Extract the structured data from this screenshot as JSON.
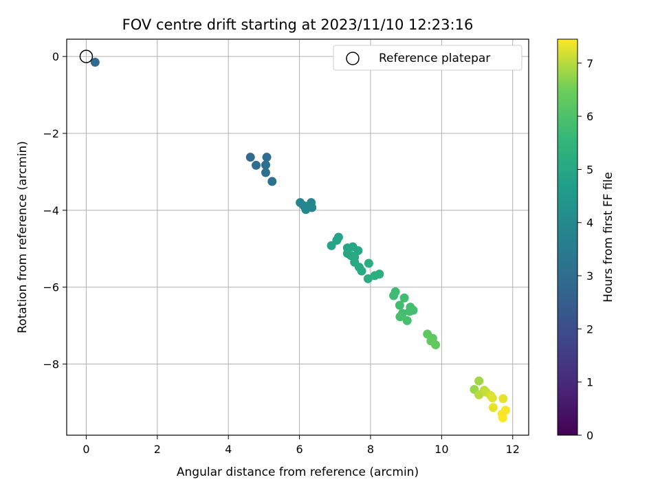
{
  "chart_data": {
    "type": "scatter",
    "title": "FOV centre drift starting at 2023/11/10 12:23:16",
    "xlabel": "Angular distance from reference (arcmin)",
    "ylabel": "Rotation from reference (arcmin)",
    "colorbar_label": "Hours from first FF file",
    "xlim": [
      -0.55,
      12.45
    ],
    "ylim": [
      -9.85,
      0.45
    ],
    "clim": [
      0,
      7.45
    ],
    "x_ticks": [
      0,
      2,
      4,
      6,
      8,
      10,
      12
    ],
    "y_ticks": [
      0,
      -2,
      -4,
      -6,
      -8
    ],
    "colorbar_ticks": [
      0,
      1,
      2,
      3,
      4,
      5,
      6,
      7
    ],
    "grid": true,
    "colormap": "viridis",
    "legend": {
      "placement": "top-right",
      "entries": [
        "Reference platepar"
      ]
    },
    "reference_point": {
      "x": 0,
      "y": 0
    },
    "points": [
      {
        "x": 0.25,
        "y": -0.15,
        "c": 2.9
      },
      {
        "x": 4.62,
        "y": -2.62,
        "c": 2.95
      },
      {
        "x": 4.78,
        "y": -2.83,
        "c": 3.0
      },
      {
        "x": 5.08,
        "y": -2.62,
        "c": 3.0
      },
      {
        "x": 5.05,
        "y": -2.82,
        "c": 3.05
      },
      {
        "x": 5.05,
        "y": -3.02,
        "c": 3.05
      },
      {
        "x": 5.23,
        "y": -3.25,
        "c": 3.1
      },
      {
        "x": 6.02,
        "y": -3.8,
        "c": 3.8
      },
      {
        "x": 6.12,
        "y": -3.88,
        "c": 3.85
      },
      {
        "x": 6.18,
        "y": -3.98,
        "c": 3.85
      },
      {
        "x": 6.28,
        "y": -3.88,
        "c": 3.9
      },
      {
        "x": 6.33,
        "y": -3.8,
        "c": 3.9
      },
      {
        "x": 6.35,
        "y": -3.93,
        "c": 3.9
      },
      {
        "x": 6.9,
        "y": -4.92,
        "c": 4.85
      },
      {
        "x": 7.05,
        "y": -4.78,
        "c": 4.85
      },
      {
        "x": 7.1,
        "y": -4.7,
        "c": 4.9
      },
      {
        "x": 7.35,
        "y": -4.98,
        "c": 4.9
      },
      {
        "x": 7.5,
        "y": -4.95,
        "c": 4.95
      },
      {
        "x": 7.65,
        "y": -5.05,
        "c": 5.0
      },
      {
        "x": 7.35,
        "y": -5.12,
        "c": 5.0
      },
      {
        "x": 7.45,
        "y": -5.18,
        "c": 5.0
      },
      {
        "x": 7.55,
        "y": -5.22,
        "c": 5.05
      },
      {
        "x": 7.55,
        "y": -5.35,
        "c": 5.05
      },
      {
        "x": 7.68,
        "y": -5.48,
        "c": 5.1
      },
      {
        "x": 7.75,
        "y": -5.58,
        "c": 5.1
      },
      {
        "x": 7.95,
        "y": -5.38,
        "c": 5.2
      },
      {
        "x": 7.93,
        "y": -5.78,
        "c": 5.2
      },
      {
        "x": 8.12,
        "y": -5.7,
        "c": 5.25
      },
      {
        "x": 8.25,
        "y": -5.66,
        "c": 5.25
      },
      {
        "x": 8.7,
        "y": -6.12,
        "c": 5.75
      },
      {
        "x": 8.65,
        "y": -6.22,
        "c": 5.75
      },
      {
        "x": 8.95,
        "y": -6.28,
        "c": 5.8
      },
      {
        "x": 8.82,
        "y": -6.47,
        "c": 5.8
      },
      {
        "x": 9.12,
        "y": -6.52,
        "c": 5.85
      },
      {
        "x": 9.2,
        "y": -6.6,
        "c": 5.85
      },
      {
        "x": 9.1,
        "y": -6.63,
        "c": 5.85
      },
      {
        "x": 8.9,
        "y": -6.68,
        "c": 5.85
      },
      {
        "x": 8.83,
        "y": -6.77,
        "c": 5.9
      },
      {
        "x": 9.03,
        "y": -6.87,
        "c": 5.9
      },
      {
        "x": 9.6,
        "y": -7.22,
        "c": 6.25
      },
      {
        "x": 9.75,
        "y": -7.33,
        "c": 6.25
      },
      {
        "x": 9.7,
        "y": -7.4,
        "c": 6.3
      },
      {
        "x": 9.83,
        "y": -7.5,
        "c": 6.3
      },
      {
        "x": 10.92,
        "y": -8.66,
        "c": 6.8
      },
      {
        "x": 11.05,
        "y": -8.44,
        "c": 6.85
      },
      {
        "x": 11.05,
        "y": -8.8,
        "c": 7.0
      },
      {
        "x": 11.2,
        "y": -8.68,
        "c": 7.05
      },
      {
        "x": 11.25,
        "y": -8.73,
        "c": 7.1
      },
      {
        "x": 11.38,
        "y": -8.82,
        "c": 7.2
      },
      {
        "x": 11.43,
        "y": -8.88,
        "c": 7.25
      },
      {
        "x": 11.73,
        "y": -8.9,
        "c": 7.3
      },
      {
        "x": 11.45,
        "y": -9.13,
        "c": 7.3
      },
      {
        "x": 11.8,
        "y": -9.2,
        "c": 7.4
      },
      {
        "x": 11.7,
        "y": -9.3,
        "c": 7.4
      },
      {
        "x": 11.72,
        "y": -9.4,
        "c": 7.45
      }
    ]
  }
}
